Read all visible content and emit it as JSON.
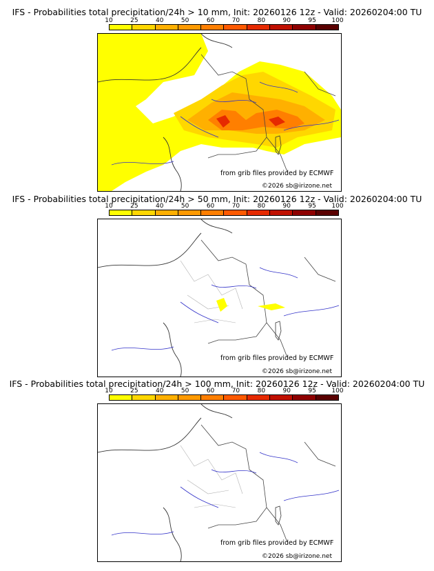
{
  "colorbar": {
    "ticks": [
      "10",
      "25",
      "40",
      "50",
      "60",
      "70",
      "80",
      "90",
      "95",
      "100"
    ],
    "colors": [
      "#ffff00",
      "#ffd700",
      "#ffb000",
      "#ff9a00",
      "#ff7f00",
      "#ff5a00",
      "#e62a00",
      "#c01000",
      "#8e0000",
      "#5a0000"
    ]
  },
  "panels": [
    {
      "title": "IFS - Probabilities total precipitation/24h > 10 mm, Init: 20260126 12z - Valid: 20260204:00 TU"
    },
    {
      "title": "IFS - Probabilities total precipitation/24h > 50 mm, Init: 20260126 12z - Valid: 20260204:00 TU"
    },
    {
      "title": "IFS - Probabilities total precipitation/24h > 100 mm, Init: 20260126 12z - Valid: 20260204:00 TU"
    }
  ],
  "credit": "from grib files provided by ECMWF",
  "copyright": "©2026 sb@irizone.net"
}
